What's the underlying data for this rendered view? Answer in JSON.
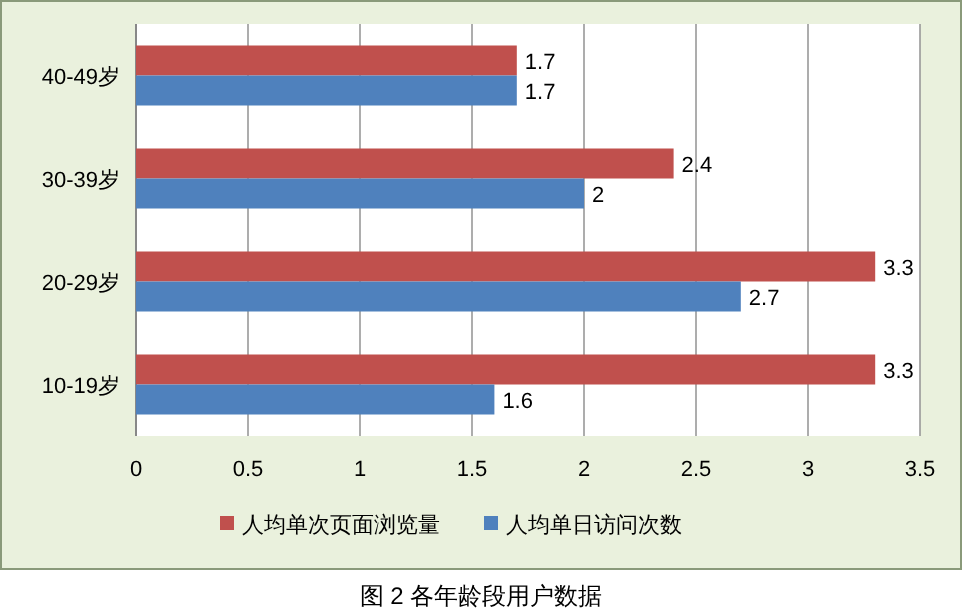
{
  "chart_data": {
    "type": "bar",
    "orientation": "horizontal",
    "title": "图 2 各年龄段用户数据",
    "categories": [
      "40-49岁",
      "30-39岁",
      "20-29岁",
      "10-19岁"
    ],
    "series": [
      {
        "name": "人均单次页面浏览量",
        "color": "#c0504d",
        "values": [
          1.7,
          2.4,
          3.3,
          3.3
        ]
      },
      {
        "name": "人均单日访问次数",
        "color": "#4f81bd",
        "values": [
          1.7,
          2,
          2.7,
          1.6
        ]
      }
    ],
    "xlim": [
      0,
      3.5
    ],
    "xticks": [
      0,
      0.5,
      1,
      1.5,
      2,
      2.5,
      3,
      3.5
    ],
    "grid": "x",
    "legend": "bottom",
    "data_labels": true
  }
}
